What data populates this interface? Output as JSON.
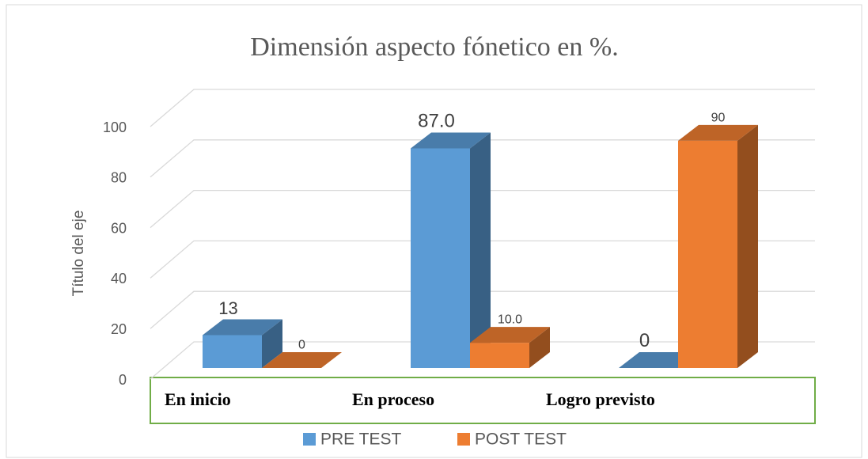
{
  "chart_data": {
    "type": "bar3d",
    "title": "Dimensión aspecto fónetico en %.",
    "y_label": "Título del eje",
    "categories": [
      "En inicio",
      "En proceso",
      "Logro previsto"
    ],
    "series": [
      {
        "name": "PRE TEST",
        "color": "#5b9bd5",
        "values": [
          13,
          87,
          0
        ],
        "value_labels": [
          "13",
          "87.0",
          "0"
        ]
      },
      {
        "name": "POST TEST",
        "color": "#ed7d31",
        "values": [
          0,
          10,
          90
        ],
        "value_labels": [
          "0",
          "10.0",
          "90"
        ]
      }
    ],
    "ylim": [
      0,
      100
    ],
    "yticks": [
      0,
      20,
      40,
      60,
      80,
      100
    ],
    "grid": true,
    "legend": "bottom"
  }
}
